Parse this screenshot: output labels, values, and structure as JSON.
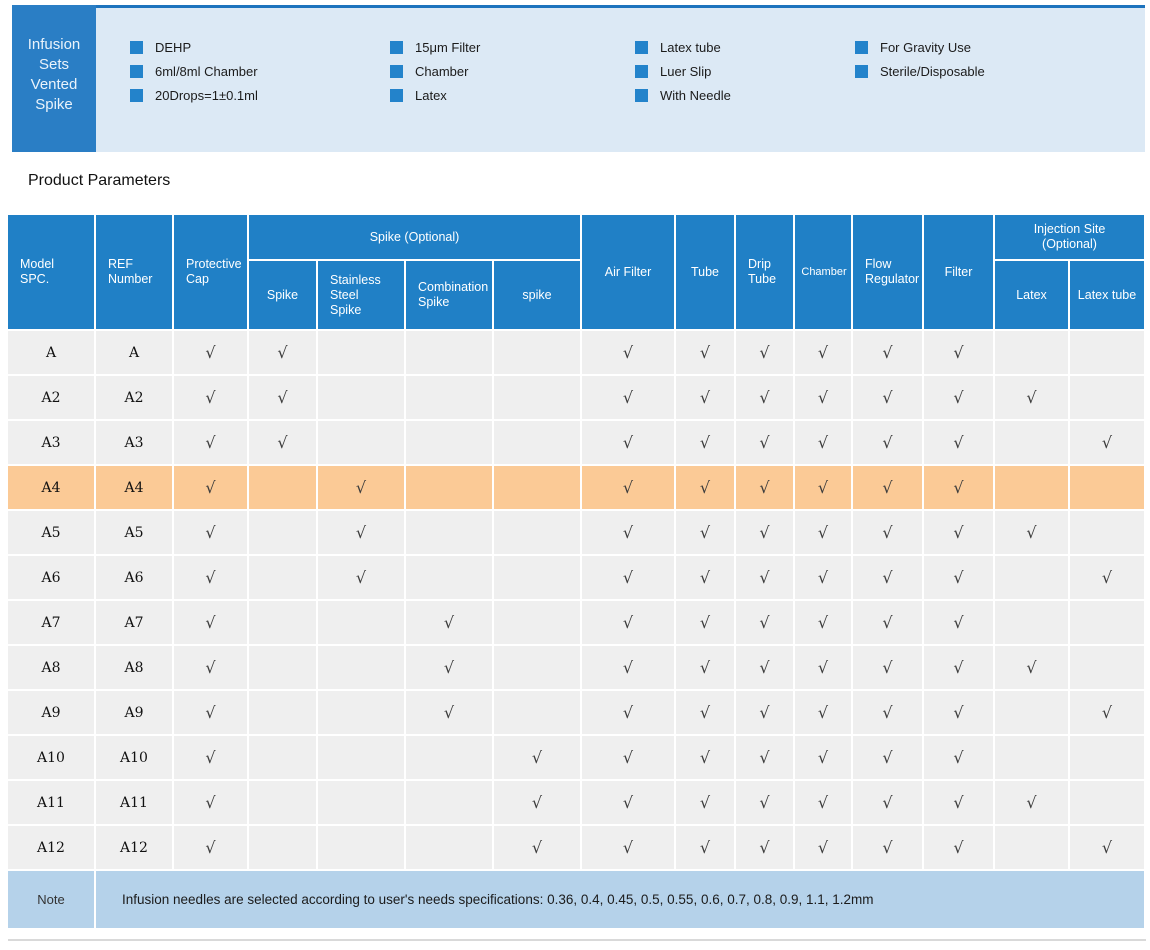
{
  "colors": {
    "accent_blue": "#2080c6",
    "banner_box_blue": "#2a7ec5",
    "panel_light_blue": "#dce9f5",
    "highlight_orange": "#fbca96",
    "note_bg_blue": "#b5d2ea",
    "row_gray": "#efefef"
  },
  "banner": {
    "title_lines": [
      "Infusion",
      "Sets",
      "Vented",
      "Spike"
    ],
    "feature_columns": [
      {
        "items": [
          "DEHP",
          "6ml/8ml Chamber",
          "20Drops=1±0.1ml"
        ]
      },
      {
        "items": [
          "15μm Filter",
          "Chamber",
          "Latex"
        ]
      },
      {
        "items": [
          "Latex tube",
          "Luer Slip",
          "With Needle"
        ]
      },
      {
        "items": [
          "For Gravity Use",
          "Sterile/Disposable"
        ]
      }
    ]
  },
  "section": {
    "title": "Product Parameters"
  },
  "table": {
    "check_glyph": "√",
    "headers": {
      "model": "Model\nSPC.",
      "ref": "REF\nNumber",
      "protective_cap": "Protective\nCap",
      "spike_group": "Spike (Optional)",
      "spike": "Spike",
      "stainless_steel_spike": "Stainless\nSteel\nSpike",
      "combination_spike": "Combination\nSpike",
      "spike_lower": "spike",
      "air_filter": "Air Filter",
      "tube": "Tube",
      "drip_tube": "Drip\nTube",
      "chamber": "Chamber",
      "flow_regulator": "Flow\nRegulator",
      "filter": "Filter",
      "injection_group": "Injection Site\n(Optional)",
      "latex": "Latex",
      "latex_tube": "Latex tube"
    },
    "check_columns": [
      "protective_cap",
      "spike",
      "stainless_steel_spike",
      "combination_spike",
      "spike_lower",
      "air_filter",
      "tube",
      "drip_tube",
      "chamber",
      "flow_regulator",
      "filter",
      "latex",
      "latex_tube"
    ],
    "rows": [
      {
        "model": "A",
        "ref": "A",
        "highlight": false,
        "checks": [
          1,
          1,
          0,
          0,
          0,
          1,
          1,
          1,
          1,
          1,
          1,
          0,
          0
        ]
      },
      {
        "model": "A2",
        "ref": "A2",
        "highlight": false,
        "checks": [
          1,
          1,
          0,
          0,
          0,
          1,
          1,
          1,
          1,
          1,
          1,
          1,
          0
        ]
      },
      {
        "model": "A3",
        "ref": "A3",
        "highlight": false,
        "checks": [
          1,
          1,
          0,
          0,
          0,
          1,
          1,
          1,
          1,
          1,
          1,
          0,
          1
        ]
      },
      {
        "model": "A4",
        "ref": "A4",
        "highlight": true,
        "checks": [
          1,
          0,
          1,
          0,
          0,
          1,
          1,
          1,
          1,
          1,
          1,
          0,
          0
        ]
      },
      {
        "model": "A5",
        "ref": "A5",
        "highlight": false,
        "checks": [
          1,
          0,
          1,
          0,
          0,
          1,
          1,
          1,
          1,
          1,
          1,
          1,
          0
        ]
      },
      {
        "model": "A6",
        "ref": "A6",
        "highlight": false,
        "checks": [
          1,
          0,
          1,
          0,
          0,
          1,
          1,
          1,
          1,
          1,
          1,
          0,
          1
        ]
      },
      {
        "model": "A7",
        "ref": "A7",
        "highlight": false,
        "checks": [
          1,
          0,
          0,
          1,
          0,
          1,
          1,
          1,
          1,
          1,
          1,
          0,
          0
        ]
      },
      {
        "model": "A8",
        "ref": "A8",
        "highlight": false,
        "checks": [
          1,
          0,
          0,
          1,
          0,
          1,
          1,
          1,
          1,
          1,
          1,
          1,
          0
        ]
      },
      {
        "model": "A9",
        "ref": "A9",
        "highlight": false,
        "checks": [
          1,
          0,
          0,
          1,
          0,
          1,
          1,
          1,
          1,
          1,
          1,
          0,
          1
        ]
      },
      {
        "model": "A10",
        "ref": "A10",
        "highlight": false,
        "checks": [
          1,
          0,
          0,
          0,
          1,
          1,
          1,
          1,
          1,
          1,
          1,
          0,
          0
        ]
      },
      {
        "model": "A11",
        "ref": "A11",
        "highlight": false,
        "checks": [
          1,
          0,
          0,
          0,
          1,
          1,
          1,
          1,
          1,
          1,
          1,
          1,
          0
        ]
      },
      {
        "model": "A12",
        "ref": "A12",
        "highlight": false,
        "checks": [
          1,
          0,
          0,
          0,
          1,
          1,
          1,
          1,
          1,
          1,
          1,
          0,
          1
        ]
      }
    ],
    "note": {
      "label": "Note",
      "text": "Infusion needles are selected according to user's needs specifications: 0.36, 0.4, 0.45, 0.5, 0.55, 0.6, 0.7, 0.8, 0.9, 1.1, 1.2mm"
    }
  }
}
